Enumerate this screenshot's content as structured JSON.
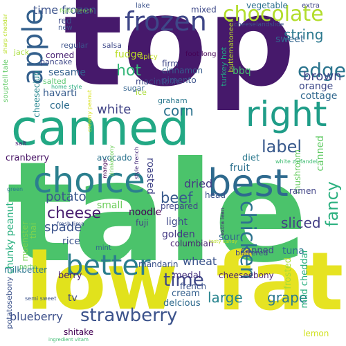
{
  "words": [
    {
      "text": "top",
      "color": "#46196b"
    },
    {
      "text": "tale",
      "color": "#4bc36b"
    },
    {
      "text": "low",
      "color": "#e1e21c"
    },
    {
      "text": "fat",
      "color": "#e6e322"
    },
    {
      "text": "canned",
      "color": "#22a884"
    },
    {
      "text": "choice",
      "color": "#2b7f8e"
    },
    {
      "text": "best",
      "color": "#2e6a8e"
    },
    {
      "text": "right",
      "color": "#1f9d88"
    },
    {
      "text": "better",
      "color": "#2b7e8e"
    },
    {
      "text": "apple",
      "color": "#34608d"
    },
    {
      "text": "frozen",
      "color": "#3f4788"
    },
    {
      "text": "chocolate",
      "color": "#b2dd2c"
    },
    {
      "text": "chicken",
      "color": "#2c728e"
    },
    {
      "text": "time",
      "color": "#3f4888"
    },
    {
      "text": "strawberry",
      "color": "#3b528b"
    },
    {
      "text": "edge",
      "color": "#2b748e"
    },
    {
      "text": "label",
      "color": "#38598c"
    },
    {
      "text": "fancy",
      "color": "#2bb07f"
    },
    {
      "text": "string",
      "color": "#2a788e"
    },
    {
      "text": "time frozen",
      "color": "#3b528b"
    },
    {
      "text": "beef",
      "color": "#38598c"
    },
    {
      "text": "cheese",
      "color": "#481d6f"
    },
    {
      "text": "large",
      "color": "#25838e"
    },
    {
      "text": "grape",
      "color": "#2a788e"
    },
    {
      "text": "blueberry",
      "color": "#3c4f8a"
    },
    {
      "text": "corn",
      "color": "#2c738e"
    },
    {
      "text": "hot",
      "color": "#35b779"
    },
    {
      "text": "white",
      "color": "#414487"
    },
    {
      "text": "potato",
      "color": "#39568c"
    },
    {
      "text": "spade",
      "color": "#3b528b"
    },
    {
      "text": "sliced",
      "color": "#433e85"
    },
    {
      "text": "wheat",
      "color": "#3a538b"
    },
    {
      "text": "brown",
      "color": "#3f4788"
    },
    {
      "text": "dried",
      "color": "#443a83"
    },
    {
      "text": "fudge",
      "color": "#bade28"
    },
    {
      "text": "sweet",
      "color": "#32658e"
    },
    {
      "text": "canned",
      "color": "#5ec962"
    },
    {
      "text": "roasted",
      "color": "#414487"
    },
    {
      "text": "mixed",
      "color": "#3e4989"
    },
    {
      "text": "vegetable",
      "color": "#2d708e"
    },
    {
      "text": "cole",
      "color": "#2e6d8e"
    },
    {
      "text": "havarti",
      "color": "#365c8d"
    },
    {
      "text": "sesame",
      "color": "#34618d"
    },
    {
      "text": "cheeseclub",
      "color": "#25858e"
    },
    {
      "text": "red",
      "color": "#3e4a89"
    },
    {
      "text": "corned",
      "color": "#482173"
    },
    {
      "text": "pancake",
      "color": "#3f4889"
    },
    {
      "text": "bbq",
      "color": "#44bf70"
    },
    {
      "text": "cottage",
      "color": "#31688e"
    },
    {
      "text": "orange",
      "color": "#3e4989"
    },
    {
      "text": "fruit",
      "color": "#2d708e"
    },
    {
      "text": "diet",
      "color": "#2a788e"
    },
    {
      "text": "cranberry",
      "color": "#471365"
    },
    {
      "text": "avocado",
      "color": "#2c738e"
    },
    {
      "text": "noodle",
      "color": "#440154"
    },
    {
      "text": "small",
      "color": "#6ccd5a"
    },
    {
      "text": "chunky peanut",
      "color": "#29af7f"
    },
    {
      "text": "rice",
      "color": "#3b528b"
    },
    {
      "text": "golden",
      "color": "#443983"
    },
    {
      "text": "light",
      "color": "#3f4889"
    },
    {
      "text": "sour",
      "color": "#32658e"
    },
    {
      "text": "canned",
      "color": "#3f4788"
    },
    {
      "text": "tuna",
      "color": "#2e6e8e"
    },
    {
      "text": "cream",
      "color": "#35608d"
    },
    {
      "text": "medal",
      "color": "#46327e"
    },
    {
      "text": "french",
      "color": "#3b528b"
    },
    {
      "text": "delcious",
      "color": "#2f6b8e"
    },
    {
      "text": "berry",
      "color": "#481b6d"
    },
    {
      "text": "mild cheddar",
      "color": "#29af7f"
    },
    {
      "text": "frosted",
      "color": "#a8db34"
    },
    {
      "text": "cheeseebony",
      "color": "#481f70"
    },
    {
      "text": "milkbetter",
      "color": "#2a768e"
    },
    {
      "text": "potatosebony",
      "color": "#3b528b"
    },
    {
      "text": "tv",
      "color": "#3f4788"
    },
    {
      "text": "shitake",
      "color": "#440154"
    },
    {
      "text": "lemon",
      "color": "#d0e11c"
    },
    {
      "text": "prepared",
      "color": "#404588"
    },
    {
      "text": "fuji",
      "color": "#433e85"
    },
    {
      "text": "columbian",
      "color": "#481f70"
    },
    {
      "text": "mandarin",
      "color": "#3b528b"
    },
    {
      "text": "buttered",
      "color": "#414487"
    },
    {
      "text": "muenster",
      "color": "#7ad151"
    },
    {
      "text": "thai",
      "color": "#7fd34e"
    },
    {
      "text": "mushroom",
      "color": "#65cb5e"
    },
    {
      "text": "ramen",
      "color": "#414487"
    },
    {
      "text": "head",
      "color": "#3b528b"
    },
    {
      "text": "firm",
      "color": "#3f4889"
    },
    {
      "text": "cinnamon",
      "color": "#365c8d"
    },
    {
      "text": "macintosh",
      "color": "#3e4989"
    },
    {
      "text": "pimento",
      "color": "#3b528b"
    },
    {
      "text": "graham",
      "color": "#2a788e"
    },
    {
      "text": "sugar",
      "color": "#33638d"
    },
    {
      "text": "ice",
      "color": "#a8db34"
    },
    {
      "text": "salsa",
      "color": "#3e4989"
    },
    {
      "text": "spicy",
      "color": "#c2df23"
    },
    {
      "text": "regular",
      "color": "#3b528b"
    },
    {
      "text": "salted",
      "color": "#52c569"
    },
    {
      "text": "jack",
      "color": "#a5db36"
    },
    {
      "text": "new",
      "color": "#3b528b"
    },
    {
      "text": "lake",
      "color": "#3b528b"
    },
    {
      "text": "extra",
      "color": "#404588"
    },
    {
      "text": "foot long",
      "color": "#440154"
    },
    {
      "text": "turkey hot",
      "color": "#22a884"
    },
    {
      "text": "butternatoneel",
      "color": "#bade28"
    },
    {
      "text": "cheeselandslide",
      "color": "#3b528b"
    },
    {
      "text": "fajita french",
      "color": "#7ad151"
    },
    {
      "text": "sharp cheddar",
      "color": "#bade28"
    },
    {
      "text": "souptell tale",
      "color": "#5ec962"
    },
    {
      "text": "home style",
      "color": "#29af7f"
    },
    {
      "text": "creamy peanut",
      "color": "#d8e219"
    },
    {
      "text": "drinkebony",
      "color": "#6ece58"
    },
    {
      "text": "mango",
      "color": "#440154"
    },
    {
      "text": "style french",
      "color": "#472d7b"
    },
    {
      "text": "white zinfandel",
      "color": "#3fbc73"
    },
    {
      "text": "salt",
      "color": "#482173"
    },
    {
      "text": "green",
      "color": "#2a788e"
    },
    {
      "text": "fresh lima",
      "color": "#3b528b"
    },
    {
      "text": "extra lean",
      "color": "#482677"
    },
    {
      "text": "tasty candy",
      "color": "#bade28"
    },
    {
      "text": "mint",
      "color": "#31688e"
    },
    {
      "text": "party",
      "color": "#5ec962"
    },
    {
      "text": "semi sweet",
      "color": "#3b528b"
    },
    {
      "text": "ingredient vitam",
      "color": "#3fbc73"
    }
  ]
}
